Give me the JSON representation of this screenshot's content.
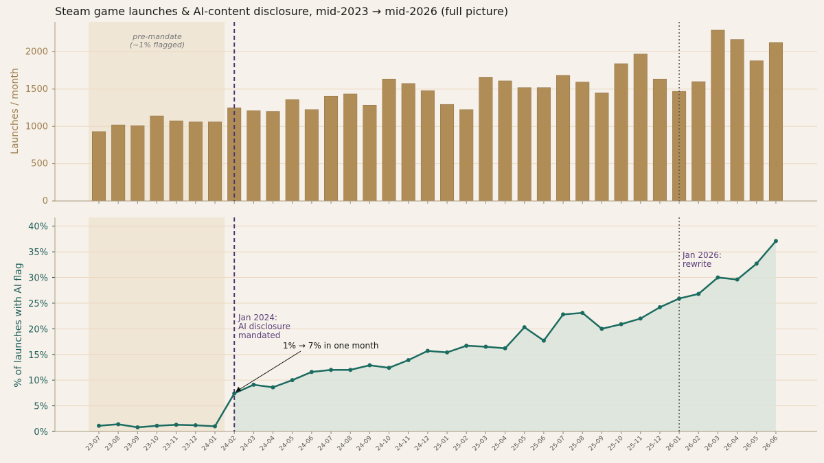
{
  "title": "Steam game launches & AI-content disclosure, mid-2023 → mid-2026 (full picture)",
  "colors": {
    "background": "#f6f1ea",
    "bar": "#b08d57",
    "line": "#1a6b60",
    "area": "#dbe4da",
    "pre_band": "#efe6d6",
    "mandate_line": "#4b3a6e",
    "rewrite_line": "#555555"
  },
  "chart_data": [
    {
      "type": "bar",
      "ylabel": "Launches / month",
      "ylim": [
        0,
        2400
      ],
      "yticks": [
        0,
        500,
        1000,
        1500,
        2000
      ],
      "categories": [
        "23-07",
        "23-08",
        "23-09",
        "23-10",
        "23-11",
        "23-12",
        "24-01",
        "24-02",
        "24-03",
        "24-04",
        "24-05",
        "24-06",
        "24-07",
        "24-08",
        "24-09",
        "24-10",
        "24-11",
        "24-12",
        "25-01",
        "25-02",
        "25-03",
        "25-04",
        "25-05",
        "25-06",
        "25-07",
        "25-08",
        "25-09",
        "25-10",
        "25-11",
        "25-12",
        "26-01",
        "26-02",
        "26-03",
        "26-04",
        "26-05",
        "26-06"
      ],
      "values": [
        930,
        1020,
        1010,
        1140,
        1075,
        1060,
        1060,
        1250,
        1210,
        1200,
        1360,
        1225,
        1405,
        1435,
        1285,
        1635,
        1575,
        1480,
        1295,
        1225,
        1660,
        1610,
        1520,
        1520,
        1685,
        1595,
        1450,
        1840,
        1970,
        1635,
        1470,
        1600,
        2290,
        2165,
        1880,
        2125
      ],
      "annotations": [
        "pre-mandate",
        "(~1% flagged)"
      ]
    },
    {
      "type": "line",
      "ylabel": "% of launches with AI flag",
      "ylim": [
        0,
        41.7
      ],
      "yticks": [
        "0%",
        "5%",
        "10%",
        "15%",
        "20%",
        "25%",
        "30%",
        "35%",
        "40%"
      ],
      "x": [
        "23-07",
        "23-08",
        "23-09",
        "23-10",
        "23-11",
        "23-12",
        "24-01",
        "24-02",
        "24-03",
        "24-04",
        "24-05",
        "24-06",
        "24-07",
        "24-08",
        "24-09",
        "24-10",
        "24-11",
        "24-12",
        "25-01",
        "25-02",
        "25-03",
        "25-04",
        "25-05",
        "25-06",
        "25-07",
        "25-08",
        "25-09",
        "25-10",
        "25-11",
        "25-12",
        "26-01",
        "26-02",
        "26-03",
        "26-04",
        "26-05",
        "26-06"
      ],
      "values": [
        1.1,
        1.4,
        0.8,
        1.1,
        1.3,
        1.2,
        1.0,
        7.4,
        9.1,
        8.6,
        10.0,
        11.6,
        12.0,
        12.0,
        12.9,
        12.4,
        13.9,
        15.7,
        15.4,
        16.7,
        16.5,
        16.2,
        20.3,
        17.7,
        22.8,
        23.1,
        20.0,
        20.9,
        22.0,
        24.2,
        25.9,
        26.8,
        30.0,
        29.6,
        32.7,
        37.1
      ],
      "annotations": {
        "mandate": [
          "Jan 2024:",
          "AI disclosure",
          "mandated"
        ],
        "jump": "1% → 7% in one month",
        "rewrite": [
          "Jan 2026:",
          "rewrite"
        ]
      }
    }
  ]
}
